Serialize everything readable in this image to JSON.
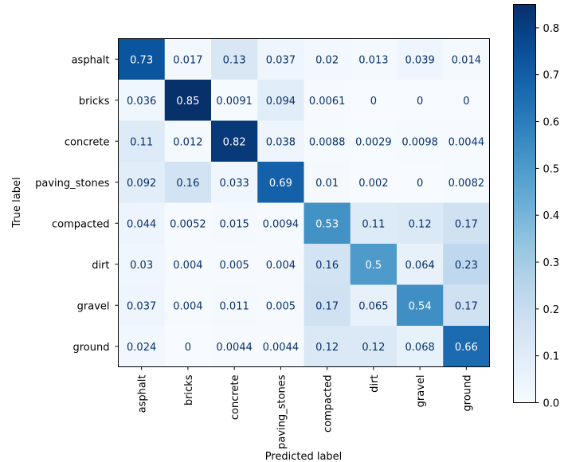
{
  "chart_data": {
    "type": "heatmap",
    "title": "",
    "xlabel": "Predicted label",
    "ylabel": "True label",
    "x_categories": [
      "asphalt",
      "bricks",
      "concrete",
      "paving_stones",
      "compacted",
      "dirt",
      "gravel",
      "ground"
    ],
    "y_categories": [
      "asphalt",
      "bricks",
      "concrete",
      "paving_stones",
      "compacted",
      "dirt",
      "gravel",
      "ground"
    ],
    "cells": [
      [
        "0.73",
        "0.017",
        "0.13",
        "0.037",
        "0.02",
        "0.013",
        "0.039",
        "0.014"
      ],
      [
        "0.036",
        "0.85",
        "0.0091",
        "0.094",
        "0.0061",
        "0",
        "0",
        "0"
      ],
      [
        "0.11",
        "0.012",
        "0.82",
        "0.038",
        "0.0088",
        "0.0029",
        "0.0098",
        "0.0044"
      ],
      [
        "0.092",
        "0.16",
        "0.033",
        "0.69",
        "0.01",
        "0.002",
        "0",
        "0.0082"
      ],
      [
        "0.044",
        "0.0052",
        "0.015",
        "0.0094",
        "0.53",
        "0.11",
        "0.12",
        "0.17"
      ],
      [
        "0.03",
        "0.004",
        "0.005",
        "0.004",
        "0.16",
        "0.5",
        "0.064",
        "0.23"
      ],
      [
        "0.037",
        "0.004",
        "0.011",
        "0.005",
        "0.17",
        "0.065",
        "0.54",
        "0.17"
      ],
      [
        "0.024",
        "0",
        "0.0044",
        "0.0044",
        "0.12",
        "0.12",
        "0.068",
        "0.66"
      ]
    ],
    "colorbar": {
      "range": [
        0,
        0.85
      ],
      "ticks": [
        "0.0",
        "0.1",
        "0.2",
        "0.3",
        "0.4",
        "0.5",
        "0.6",
        "0.7",
        "0.8"
      ],
      "colormap": "Blues"
    },
    "colors": {
      "low": "#f7fbff",
      "high": "#08306b",
      "text_dark": "#08306b",
      "text_light": "#ffffff"
    }
  }
}
